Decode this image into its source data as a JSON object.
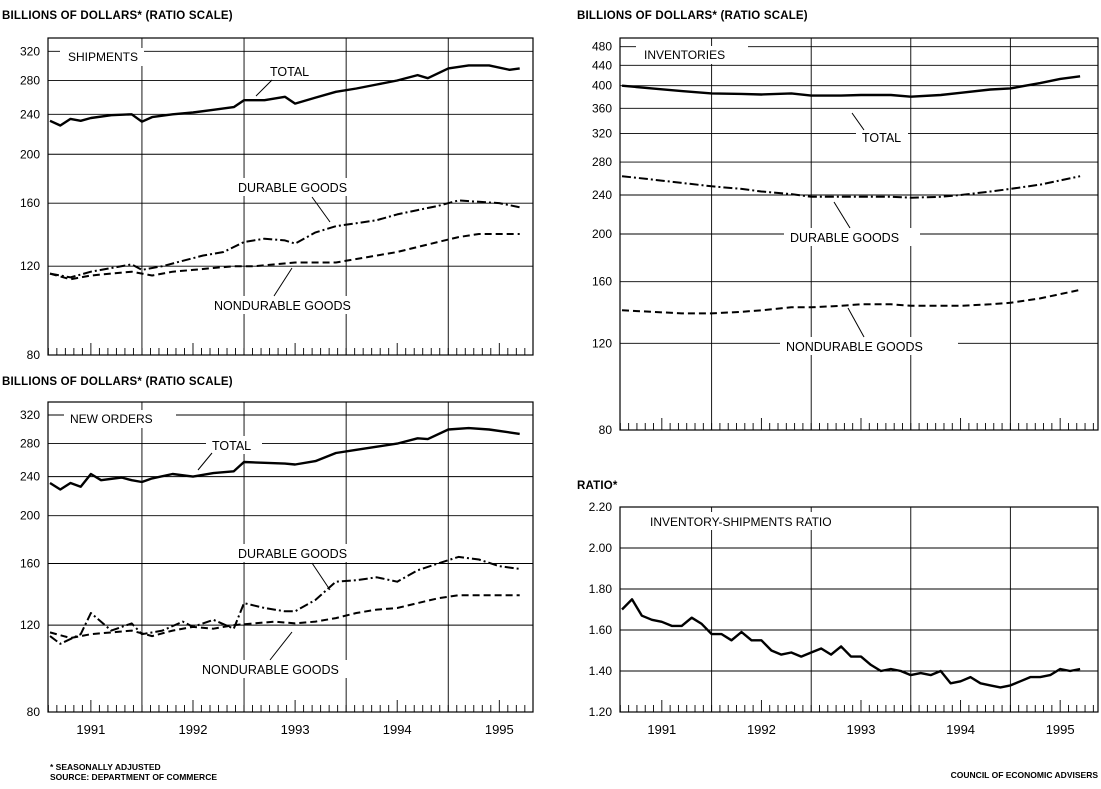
{
  "years": [
    "1991",
    "1992",
    "1993",
    "1994",
    "1995"
  ],
  "footnote": {
    "line1": "* SEASONALLY ADJUSTED",
    "line2": "SOURCE: DEPARTMENT OF COMMERCE"
  },
  "credit": "COUNCIL OF ECONOMIC ADVISERS",
  "chart_data": [
    {
      "type": "line",
      "heading": "BILLIONS OF DOLLARS* (RATIO SCALE)",
      "title": "SHIPMENTS",
      "scale": "log",
      "ylim": [
        80,
        340
      ],
      "yticks": [
        "80",
        "120",
        "160",
        "200",
        "240",
        "280",
        "320"
      ],
      "xlim": [
        1990.58,
        1995.33
      ],
      "series": [
        {
          "name": "TOTAL",
          "style": "solid",
          "x": [
            1990.6,
            1990.7,
            1990.8,
            1990.9,
            1991.0,
            1991.2,
            1991.4,
            1991.5,
            1991.6,
            1991.8,
            1992.0,
            1992.2,
            1992.4,
            1992.5,
            1992.7,
            1992.9,
            1993.0,
            1993.2,
            1993.4,
            1993.6,
            1993.8,
            1994.0,
            1994.2,
            1994.3,
            1994.5,
            1994.7,
            1994.9,
            1995.1,
            1995.2
          ],
          "y": [
            233,
            228,
            235,
            233,
            236,
            239,
            240,
            232,
            237,
            240,
            242,
            245,
            248,
            256,
            256,
            260,
            252,
            259,
            266,
            270,
            275,
            280,
            287,
            283,
            296,
            300,
            300,
            294,
            296
          ]
        },
        {
          "name": "DURABLE GOODS",
          "style": "dashdot",
          "x": [
            1990.6,
            1990.8,
            1991.0,
            1991.2,
            1991.4,
            1991.5,
            1991.7,
            1991.9,
            1992.1,
            1992.3,
            1992.5,
            1992.7,
            1992.9,
            1993.0,
            1993.2,
            1993.4,
            1993.6,
            1993.8,
            1994.0,
            1994.2,
            1994.4,
            1994.6,
            1994.8,
            1995.0,
            1995.2
          ],
          "y": [
            116,
            114,
            117,
            119,
            121,
            118,
            120,
            123,
            126,
            128,
            134,
            136,
            135,
            133,
            140,
            144,
            146,
            148,
            152,
            155,
            158,
            162,
            161,
            160,
            157
          ]
        },
        {
          "name": "NONDURABLE GOODS",
          "style": "dashed",
          "x": [
            1990.6,
            1990.8,
            1991.0,
            1991.2,
            1991.4,
            1991.6,
            1991.8,
            1992.0,
            1992.2,
            1992.4,
            1992.6,
            1992.8,
            1993.0,
            1993.2,
            1993.4,
            1993.6,
            1993.8,
            1994.0,
            1994.2,
            1994.4,
            1994.6,
            1994.8,
            1995.0,
            1995.2
          ],
          "y": [
            116,
            113,
            115,
            116,
            117,
            115,
            117,
            118,
            119,
            120,
            120,
            121,
            122,
            122,
            122,
            124,
            126,
            128,
            131,
            134,
            137,
            139,
            139,
            139
          ]
        }
      ],
      "annotations": [
        "TOTAL",
        "DURABLE GOODS",
        "NONDURABLE GOODS"
      ]
    },
    {
      "type": "line",
      "heading": "BILLIONS OF DOLLARS* (RATIO SCALE)",
      "title": "NEW ORDERS",
      "scale": "log",
      "ylim": [
        80,
        340
      ],
      "yticks": [
        "80",
        "120",
        "160",
        "200",
        "240",
        "280",
        "320"
      ],
      "xlim": [
        1990.58,
        1995.33
      ],
      "xticklabels": [
        "1991",
        "1992",
        "1993",
        "1994",
        "1995"
      ],
      "series": [
        {
          "name": "TOTAL",
          "style": "solid",
          "x": [
            1990.6,
            1990.7,
            1990.8,
            1990.9,
            1991.0,
            1991.1,
            1991.3,
            1991.4,
            1991.5,
            1991.6,
            1991.8,
            1992.0,
            1992.2,
            1992.4,
            1992.5,
            1992.7,
            1992.9,
            1993.0,
            1993.2,
            1993.4,
            1993.6,
            1993.8,
            1994.0,
            1994.2,
            1994.3,
            1994.5,
            1994.7,
            1994.9,
            1995.1,
            1995.2
          ],
          "y": [
            233,
            226,
            233,
            229,
            243,
            236,
            239,
            236,
            234,
            238,
            243,
            240,
            244,
            246,
            257,
            256,
            255,
            254,
            258,
            268,
            272,
            276,
            280,
            287,
            286,
            299,
            301,
            299,
            295,
            293
          ]
        },
        {
          "name": "DURABLE GOODS",
          "style": "dashdot",
          "x": [
            1990.6,
            1990.7,
            1990.9,
            1991.0,
            1991.2,
            1991.4,
            1991.5,
            1991.7,
            1991.9,
            1992.0,
            1992.2,
            1992.4,
            1992.5,
            1992.7,
            1992.9,
            1993.0,
            1993.2,
            1993.4,
            1993.6,
            1993.8,
            1994.0,
            1994.2,
            1994.4,
            1994.6,
            1994.8,
            1995.0,
            1995.2
          ],
          "y": [
            114,
            110,
            115,
            127,
            117,
            121,
            115,
            117,
            122,
            119,
            123,
            118,
            133,
            130,
            128,
            128,
            135,
            147,
            148,
            150,
            147,
            155,
            160,
            165,
            163,
            158,
            156
          ]
        },
        {
          "name": "NONDURABLE GOODS",
          "style": "dashed",
          "x": [
            1990.6,
            1990.8,
            1991.0,
            1991.2,
            1991.4,
            1991.6,
            1991.8,
            1992.0,
            1992.2,
            1992.4,
            1992.6,
            1992.8,
            1993.0,
            1993.2,
            1993.4,
            1993.6,
            1993.8,
            1994.0,
            1994.2,
            1994.4,
            1994.6,
            1994.8,
            1995.0,
            1995.2
          ],
          "y": [
            116,
            113,
            115,
            116,
            117,
            114,
            117,
            119,
            118,
            120,
            121,
            122,
            121,
            122,
            124,
            127,
            129,
            130,
            133,
            136,
            138,
            138,
            138,
            138
          ]
        }
      ],
      "annotations": [
        "TOTAL",
        "DURABLE GOODS",
        "NONDURABLE GOODS"
      ]
    },
    {
      "type": "line",
      "heading": "BILLIONS OF DOLLARS* (RATIO SCALE)",
      "title": "INVENTORIES",
      "scale": "log",
      "ylim": [
        80,
        500
      ],
      "yticks": [
        "80",
        "120",
        "160",
        "200",
        "240",
        "280",
        "320",
        "360",
        "400",
        "440",
        "480"
      ],
      "xlim": [
        1990.58,
        1995.38
      ],
      "series": [
        {
          "name": "TOTAL",
          "style": "solid",
          "x": [
            1990.6,
            1990.9,
            1991.2,
            1991.5,
            1991.8,
            1992.0,
            1992.3,
            1992.5,
            1992.8,
            1993.0,
            1993.3,
            1993.5,
            1993.8,
            1994.0,
            1994.3,
            1994.5,
            1994.8,
            1995.0,
            1995.2
          ],
          "y": [
            400,
            395,
            390,
            386,
            385,
            384,
            386,
            382,
            382,
            383,
            383,
            380,
            383,
            387,
            393,
            395,
            405,
            413,
            418
          ]
        },
        {
          "name": "DURABLE GOODS",
          "style": "dashdot",
          "x": [
            1990.6,
            1990.9,
            1991.2,
            1991.5,
            1991.8,
            1992.0,
            1992.3,
            1992.5,
            1992.8,
            1993.0,
            1993.3,
            1993.5,
            1993.8,
            1994.0,
            1994.3,
            1994.5,
            1994.8,
            1995.0,
            1995.2
          ],
          "y": [
            262,
            258,
            254,
            250,
            247,
            244,
            241,
            238,
            238,
            238,
            238,
            237,
            238,
            240,
            244,
            247,
            252,
            257,
            262
          ]
        },
        {
          "name": "NONDURABLE GOODS",
          "style": "dashed",
          "x": [
            1990.6,
            1990.9,
            1991.2,
            1991.5,
            1991.8,
            1992.0,
            1992.3,
            1992.5,
            1992.8,
            1993.0,
            1993.3,
            1993.5,
            1993.8,
            1994.0,
            1994.3,
            1994.5,
            1994.8,
            1995.0,
            1995.2
          ],
          "y": [
            140,
            139,
            138,
            138,
            139,
            140,
            142,
            142,
            143,
            144,
            144,
            143,
            143,
            143,
            144,
            145,
            148,
            151,
            154
          ]
        }
      ],
      "annotations": [
        "TOTAL",
        "DURABLE GOODS",
        "NONDURABLE GOODS"
      ]
    },
    {
      "type": "line",
      "heading": "RATIO*",
      "title": "INVENTORY-SHIPMENTS RATIO",
      "scale": "linear",
      "ylim": [
        1.2,
        2.2
      ],
      "yticks": [
        "1.20",
        "1.40",
        "1.60",
        "1.80",
        "2.00",
        "2.20"
      ],
      "xlim": [
        1990.58,
        1995.38
      ],
      "xticklabels": [
        "1991",
        "1992",
        "1993",
        "1994",
        "1995"
      ],
      "series": [
        {
          "name": "INVENTORY-SHIPMENTS RATIO",
          "style": "solid",
          "x": [
            1990.6,
            1990.7,
            1990.8,
            1990.9,
            1991.0,
            1991.1,
            1991.2,
            1991.3,
            1991.4,
            1991.5,
            1991.6,
            1991.7,
            1991.8,
            1991.9,
            1992.0,
            1992.1,
            1992.2,
            1992.3,
            1992.4,
            1992.5,
            1992.6,
            1992.7,
            1992.8,
            1992.9,
            1993.0,
            1993.1,
            1993.2,
            1993.3,
            1993.4,
            1993.5,
            1993.6,
            1993.7,
            1993.8,
            1993.9,
            1994.0,
            1994.1,
            1994.2,
            1994.3,
            1994.4,
            1994.5,
            1994.6,
            1994.7,
            1994.8,
            1994.9,
            1995.0,
            1995.1,
            1995.2
          ],
          "y": [
            1.7,
            1.75,
            1.67,
            1.65,
            1.64,
            1.62,
            1.62,
            1.66,
            1.63,
            1.58,
            1.58,
            1.55,
            1.59,
            1.55,
            1.55,
            1.5,
            1.48,
            1.49,
            1.47,
            1.49,
            1.51,
            1.48,
            1.52,
            1.47,
            1.47,
            1.43,
            1.4,
            1.41,
            1.4,
            1.38,
            1.39,
            1.38,
            1.4,
            1.34,
            1.35,
            1.37,
            1.34,
            1.33,
            1.32,
            1.33,
            1.35,
            1.37,
            1.37,
            1.38,
            1.41,
            1.4,
            1.41
          ]
        }
      ]
    }
  ]
}
